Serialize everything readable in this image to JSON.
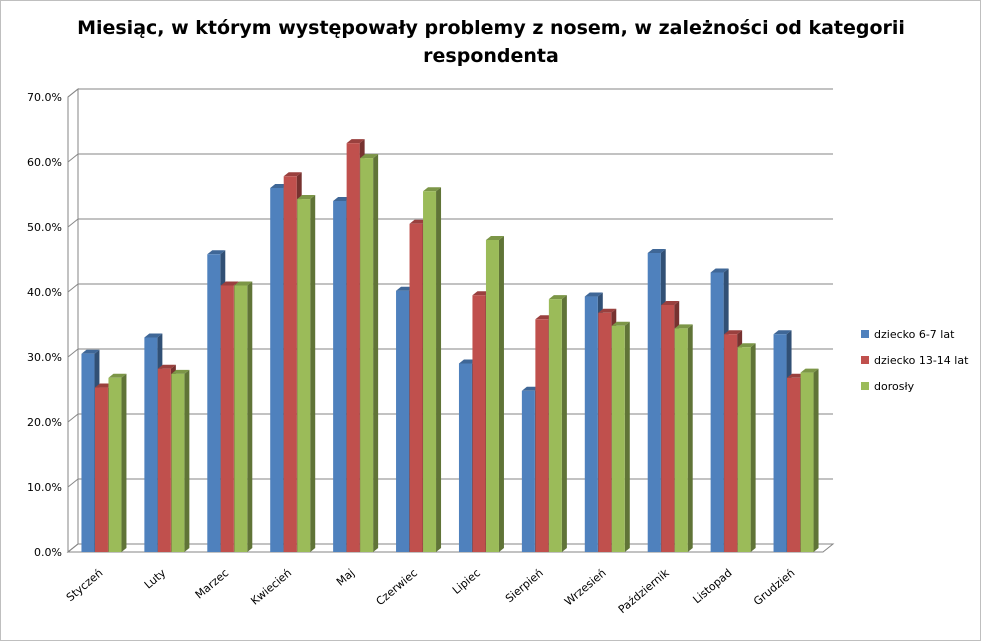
{
  "chart_data": {
    "type": "bar",
    "title": "Miesiąc, w którym występowały problemy z nosem, w zależności od kategorii respondenta",
    "categories": [
      "Styczeń",
      "Luty",
      "Marzec",
      "Kwiecień",
      "Maj",
      "Czerwiec",
      "Lipiec",
      "Sierpień",
      "Wrzesień",
      "Październik",
      "Listopad",
      "Grudzień"
    ],
    "series": [
      {
        "name": "dziecko 6-7 lat",
        "color": "#4f81bd",
        "values": [
          30.5,
          33.0,
          45.8,
          56.0,
          54.0,
          40.2,
          29.0,
          24.8,
          39.3,
          46.0,
          43.0,
          33.5
        ]
      },
      {
        "name": "dziecko 13-14 lat",
        "color": "#c0504d",
        "values": [
          25.3,
          28.2,
          41.0,
          57.8,
          62.9,
          50.5,
          39.5,
          35.8,
          36.8,
          38.0,
          33.5,
          26.8
        ]
      },
      {
        "name": "dorosły",
        "color": "#9bbb59",
        "values": [
          26.8,
          27.4,
          41.0,
          54.3,
          60.6,
          55.5,
          48.0,
          38.9,
          34.8,
          34.4,
          31.5,
          27.6
        ]
      }
    ],
    "ylim": [
      0,
      70
    ],
    "yticks": [
      "0.0%",
      "10.0%",
      "20.0%",
      "30.0%",
      "40.0%",
      "50.0%",
      "60.0%",
      "70.0%"
    ],
    "grid": true,
    "legend_position": "right"
  }
}
